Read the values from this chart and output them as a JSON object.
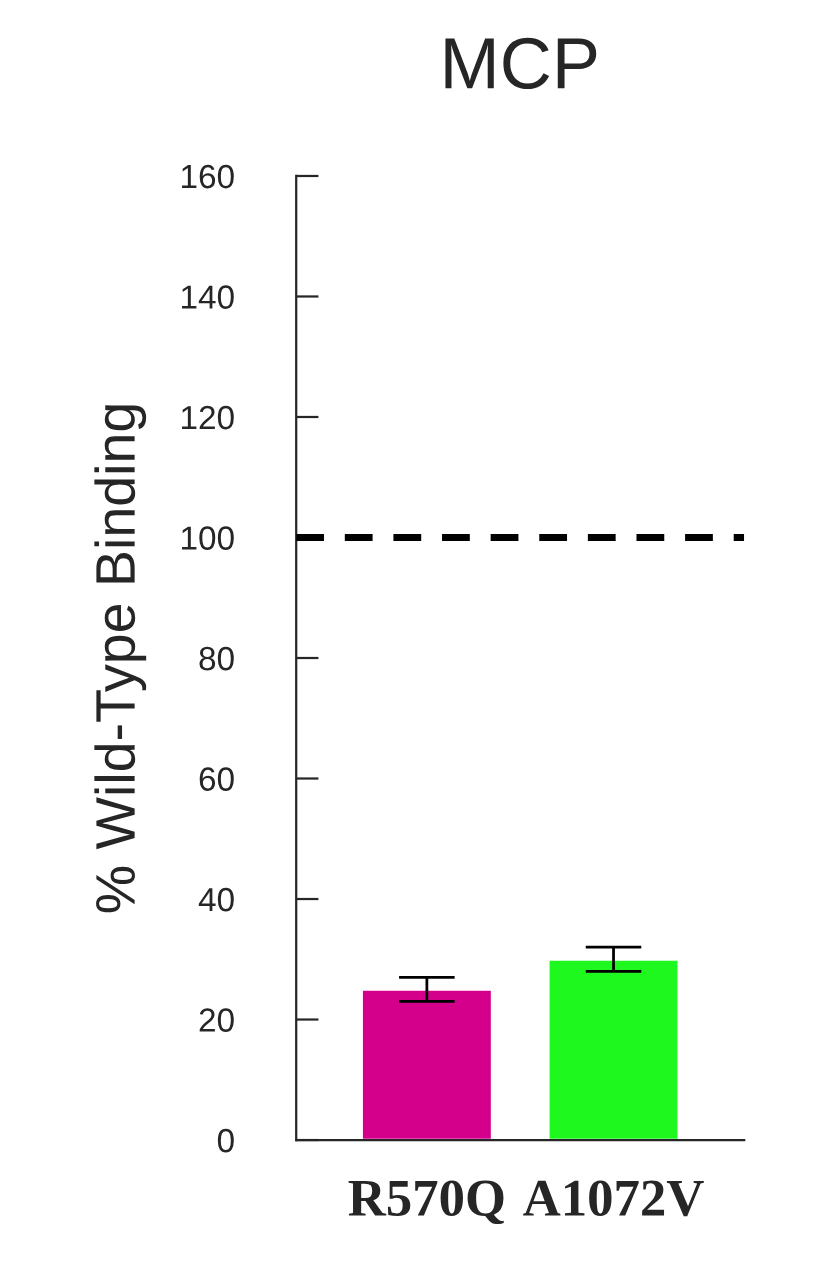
{
  "chart_data": {
    "type": "bar",
    "title": "MCP",
    "ylabel": "% Wild-Type Binding",
    "categories": [
      "R570Q",
      "A1072V"
    ],
    "values": [
      25,
      30
    ],
    "errors": [
      2,
      2
    ],
    "colors": [
      "#d4008c",
      "#1ef81e"
    ],
    "ylim": [
      0,
      160
    ],
    "yticks": [
      0,
      20,
      40,
      60,
      80,
      100,
      120,
      140,
      160
    ],
    "grid": false,
    "ref_lines": [
      {
        "axis": "y",
        "value": 100,
        "color": "#000000",
        "line_style": "dashed"
      }
    ]
  }
}
